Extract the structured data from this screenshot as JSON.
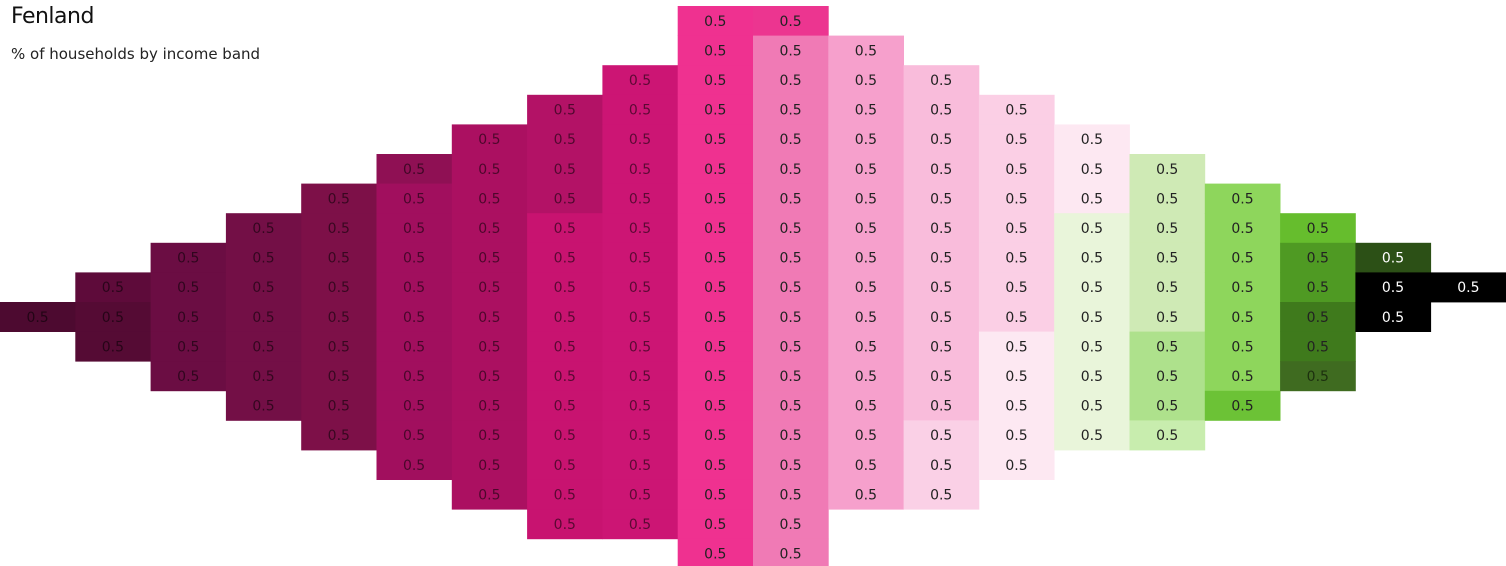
{
  "title": "Fenland",
  "subtitle": "% of households by income band",
  "chart_data": {
    "type": "heatmap",
    "value_label": "0.5",
    "columns": [
      {
        "rows": [
          [
            10,
            10,
            "#4d0a30"
          ]
        ]
      },
      {
        "rows": [
          [
            9,
            9,
            "#5e0b3a"
          ],
          [
            10,
            11,
            "#550b34"
          ]
        ]
      },
      {
        "rows": [
          [
            8,
            12,
            "#6b0d43"
          ]
        ]
      },
      {
        "rows": [
          [
            7,
            13,
            "#730f46"
          ]
        ]
      },
      {
        "rows": [
          [
            6,
            14,
            "#7d1048"
          ]
        ]
      },
      {
        "rows": [
          [
            5,
            5,
            "#8f1054"
          ],
          [
            6,
            15,
            "#a10f5e"
          ]
        ]
      },
      {
        "rows": [
          [
            4,
            16,
            "#ab1061"
          ]
        ]
      },
      {
        "rows": [
          [
            3,
            6,
            "#b31266"
          ],
          [
            7,
            17,
            "#c81370"
          ]
        ]
      },
      {
        "rows": [
          [
            2,
            17,
            "#cc1574"
          ]
        ]
      },
      {
        "rows": [
          [
            0,
            18,
            "#ef3190"
          ]
        ]
      },
      {
        "rows": [
          [
            0,
            0,
            "#ec3590"
          ],
          [
            1,
            18,
            "#f07ab5"
          ]
        ]
      },
      {
        "rows": [
          [
            1,
            16,
            "#f6a0cc"
          ]
        ]
      },
      {
        "rows": [
          [
            2,
            13,
            "#f9bcdb"
          ],
          [
            14,
            16,
            "#fad0e6"
          ]
        ]
      },
      {
        "rows": [
          [
            3,
            10,
            "#fbcfe5"
          ],
          [
            11,
            15,
            "#fde8f2"
          ]
        ]
      },
      {
        "rows": [
          [
            4,
            6,
            "#fde8f2"
          ],
          [
            7,
            14,
            "#e9f5da"
          ]
        ]
      },
      {
        "rows": [
          [
            5,
            10,
            "#cfeab5"
          ],
          [
            11,
            13,
            "#aee18c"
          ],
          [
            14,
            14,
            "#c8edae"
          ]
        ]
      },
      {
        "rows": [
          [
            6,
            12,
            "#8ed65c"
          ],
          [
            13,
            13,
            "#6cc236"
          ]
        ]
      },
      {
        "rows": [
          [
            7,
            7,
            "#66bd2d"
          ],
          [
            8,
            9,
            "#4f9a23"
          ],
          [
            10,
            11,
            "#3f7a1c"
          ],
          [
            12,
            12,
            "#3f6b20"
          ]
        ]
      },
      {
        "rows": [
          [
            8,
            8,
            "#2c5016"
          ],
          [
            9,
            10,
            "#000000"
          ]
        ]
      },
      {
        "rows": [
          [
            9,
            9,
            "#000000"
          ]
        ]
      }
    ],
    "light_text_on": [
      "#000000",
      "#2c5016"
    ]
  }
}
